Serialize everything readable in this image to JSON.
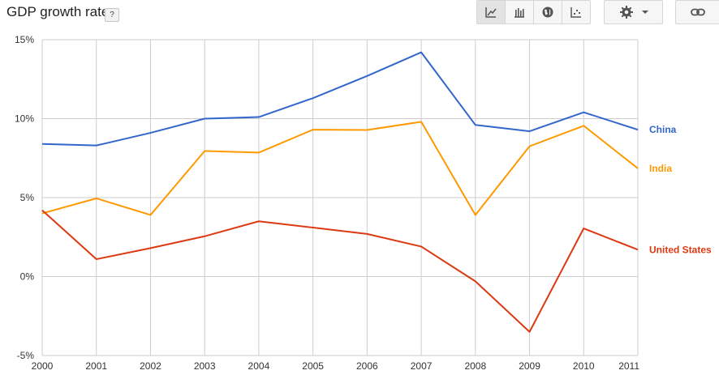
{
  "header": {
    "title": "GDP growth rate",
    "help_label": "?"
  },
  "toolbar": {
    "chart_type_buttons": [
      "line-chart-icon",
      "bar-chart-icon",
      "map-icon",
      "scatter-chart-icon"
    ],
    "active": "line-chart-icon",
    "settings_icon": "gear-icon",
    "dropdown_icon": "caret-down-icon",
    "link_icon": "link-icon"
  },
  "chart_data": {
    "type": "line",
    "title": "GDP growth rate",
    "x": [
      "2000",
      "2001",
      "2002",
      "2003",
      "2004",
      "2005",
      "2006",
      "2007",
      "2008",
      "2009",
      "2010",
      "2011"
    ],
    "ylim": [
      -5,
      15
    ],
    "yticks": [
      "15%",
      "10%",
      "5%",
      "0%",
      "-5%"
    ],
    "ytick_values": [
      15,
      10,
      5,
      0,
      -5
    ],
    "grid": true,
    "legend": "right, inline at line ends",
    "series": [
      {
        "name": "China",
        "color": "#3366cc",
        "values": [
          8.4,
          8.3,
          9.1,
          10.0,
          10.1,
          11.3,
          12.7,
          14.2,
          9.6,
          9.2,
          10.4,
          9.3
        ]
      },
      {
        "name": "India",
        "color": "#ff9900",
        "values": [
          4.0,
          4.95,
          3.9,
          7.95,
          7.85,
          9.3,
          9.28,
          9.8,
          3.9,
          8.25,
          9.55,
          6.85
        ]
      },
      {
        "name": "United States",
        "color": "#dc3912",
        "values": [
          4.2,
          1.1,
          1.8,
          2.55,
          3.5,
          3.1,
          2.7,
          1.9,
          -0.3,
          -3.5,
          3.05,
          1.7
        ]
      }
    ]
  }
}
